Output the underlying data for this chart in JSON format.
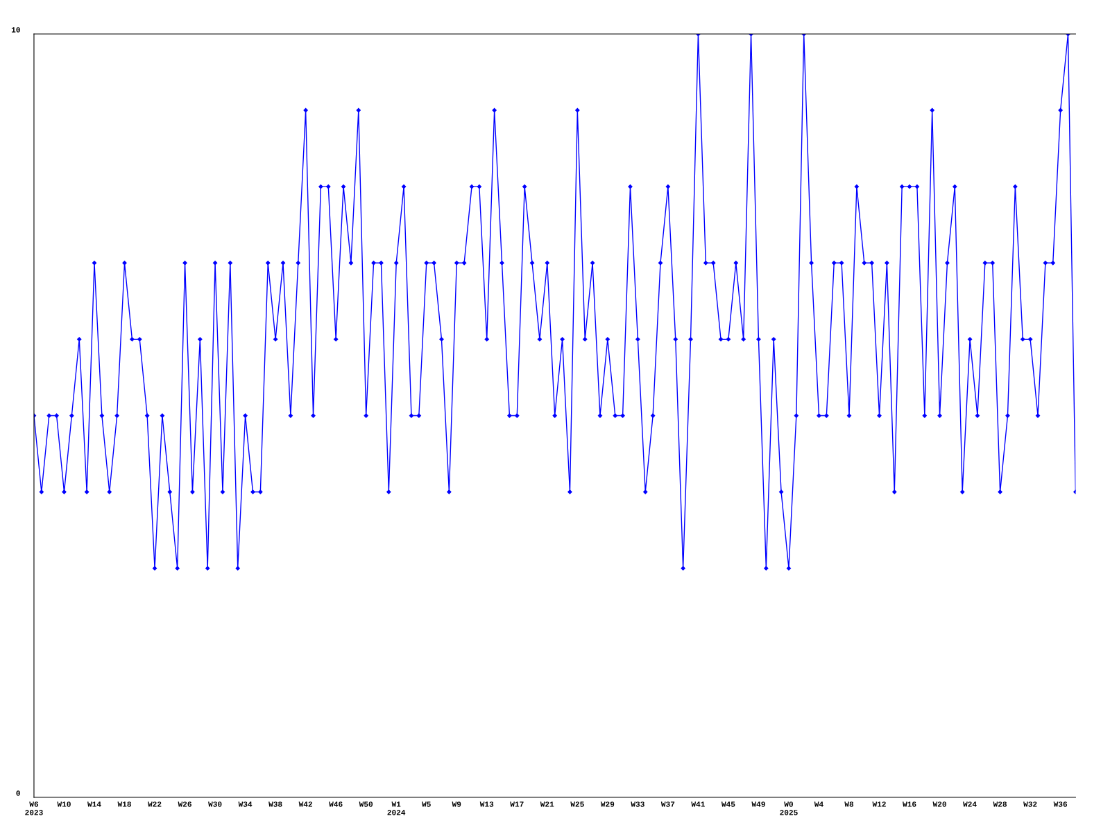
{
  "chart_data": {
    "type": "line",
    "categories": [
      "W6\n2023",
      null,
      null,
      null,
      "W10",
      null,
      null,
      null,
      "W14",
      null,
      null,
      null,
      "W18",
      null,
      null,
      null,
      "W22",
      null,
      null,
      null,
      "W26",
      null,
      null,
      null,
      "W30",
      null,
      null,
      null,
      "W34",
      null,
      null,
      null,
      "W38",
      null,
      null,
      null,
      "W42",
      null,
      null,
      null,
      "W46",
      null,
      null,
      null,
      "W50",
      null,
      null,
      null,
      "W1\n2024",
      null,
      null,
      null,
      "W5",
      null,
      null,
      null,
      "W9",
      null,
      null,
      null,
      "W13",
      null,
      null,
      null,
      "W17",
      null,
      null,
      null,
      "W21",
      null,
      null,
      null,
      "W25",
      null,
      null,
      null,
      "W29",
      null,
      null,
      null,
      "W33",
      null,
      null,
      null,
      "W37",
      null,
      null,
      null,
      "W41",
      null,
      null,
      null,
      "W45",
      null,
      null,
      null,
      "W49",
      null,
      null,
      null,
      "W0\n2025",
      null,
      null,
      null,
      "W4",
      null,
      null,
      null,
      "W8",
      null,
      null,
      null,
      "W12",
      null,
      null,
      null,
      "W16",
      null,
      null,
      null,
      "W20",
      null,
      null,
      null,
      "W24",
      null,
      null,
      null,
      "W28",
      null,
      null,
      null,
      "W32",
      null,
      null,
      null,
      "W36",
      null,
      null
    ],
    "series": [
      {
        "color": "#0000ff",
        "values": [
          5,
          4,
          5,
          5,
          4,
          5,
          6,
          4,
          7,
          5,
          4,
          5,
          7,
          6,
          6,
          5,
          3,
          5,
          4,
          3,
          7,
          4,
          6,
          3,
          7,
          4,
          7,
          3,
          5,
          4,
          4,
          7,
          6,
          7,
          5,
          7,
          9,
          5,
          8,
          8,
          6,
          8,
          7,
          9,
          5,
          7,
          7,
          4,
          7,
          8,
          5,
          5,
          7,
          7,
          6,
          4,
          7,
          7,
          8,
          8,
          6,
          9,
          7,
          5,
          5,
          8,
          7,
          6,
          7,
          5,
          6,
          4,
          9,
          6,
          7,
          5,
          6,
          5,
          5,
          8,
          6,
          4,
          5,
          7,
          8,
          6,
          3,
          6,
          10,
          7,
          7,
          6,
          6,
          7,
          6,
          10,
          6,
          3,
          6,
          4,
          3,
          5,
          10,
          7,
          5,
          5,
          7,
          7,
          5,
          8,
          7,
          7,
          5,
          7,
          4,
          8,
          8,
          8,
          5,
          9,
          5,
          7,
          8,
          4,
          6,
          5,
          7,
          7,
          4,
          5,
          8,
          6,
          6,
          5,
          7,
          7,
          9,
          10,
          4
        ]
      }
    ],
    "ylim": [
      0,
      10
    ],
    "yticks": [
      0,
      10
    ],
    "grid": false,
    "legend": false,
    "marker": "diamond",
    "line_style": "solid"
  }
}
